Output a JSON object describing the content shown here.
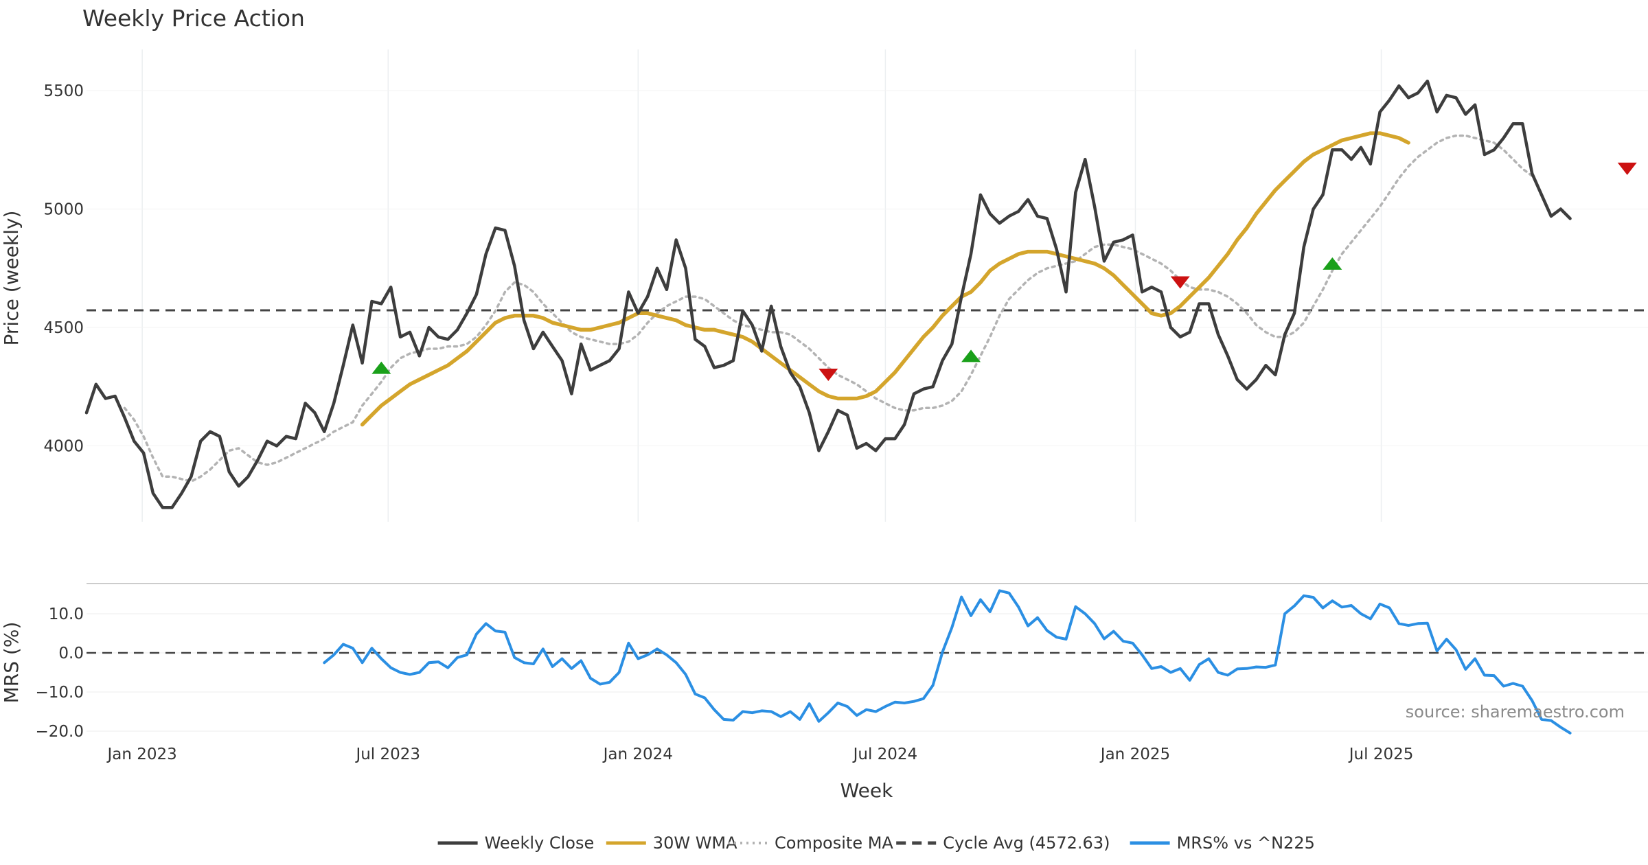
{
  "chart_data": [
    {
      "type": "line",
      "panel": "price",
      "title": "Weekly Price Action",
      "ylabel": "Price (weekly)",
      "xlabel": "Week",
      "x_start": "2022-11-21",
      "x_step_days": 7,
      "ylim": [
        3640,
        5650
      ],
      "yticks": [
        4000,
        4500,
        5000,
        5500
      ],
      "xticks": [
        {
          "date": "2023-01-01",
          "label": "Jan 2023"
        },
        {
          "date": "2023-07-01",
          "label": "Jul 2023"
        },
        {
          "date": "2024-01-01",
          "label": "Jan 2024"
        },
        {
          "date": "2024-07-01",
          "label": "Jul 2024"
        },
        {
          "date": "2025-01-01",
          "label": "Jan 2025"
        },
        {
          "date": "2025-07-01",
          "label": "Jul 2025"
        }
      ],
      "series": [
        {
          "name": "Weekly Close",
          "start_index": 0,
          "color": "#3d3d3d",
          "values": [
            4140,
            4260,
            4200,
            4210,
            4120,
            4020,
            3970,
            3800,
            3740,
            3740,
            3800,
            3870,
            4020,
            4060,
            4040,
            3890,
            3830,
            3870,
            3940,
            4020,
            4000,
            4040,
            4030,
            4180,
            4140,
            4060,
            4180,
            4340,
            4510,
            4350,
            4610,
            4600,
            4670,
            4460,
            4480,
            4380,
            4500,
            4460,
            4450,
            4490,
            4560,
            4640,
            4810,
            4920,
            4910,
            4760,
            4530,
            4410,
            4480,
            4420,
            4360,
            4220,
            4430,
            4320,
            4340,
            4360,
            4410,
            4650,
            4560,
            4630,
            4750,
            4660,
            4870,
            4750,
            4450,
            4420,
            4330,
            4340,
            4360,
            4570,
            4510,
            4400,
            4590,
            4420,
            4310,
            4250,
            4140,
            3980,
            4060,
            4150,
            4130,
            3990,
            4010,
            3980,
            4030,
            4030,
            4090,
            4220,
            4240,
            4250,
            4360,
            4430,
            4630,
            4810,
            5060,
            4980,
            4940,
            4970,
            4990,
            5040,
            4970,
            4960,
            4830,
            4650,
            5070,
            5210,
            5010,
            4780,
            4860,
            4870,
            4890,
            4650,
            4670,
            4650,
            4500,
            4460,
            4480,
            4600,
            4600,
            4470,
            4380,
            4280,
            4240,
            4280,
            4340,
            4300,
            4470,
            4560,
            4840,
            5000,
            5060,
            5250,
            5250,
            5210,
            5260,
            5190,
            5410,
            5460,
            5520,
            5470,
            5490,
            5540,
            5410,
            5480,
            5470,
            5400,
            5440,
            5230,
            5250,
            5300,
            5360,
            5360,
            5150,
            5060,
            4970,
            5000,
            4960
          ]
        },
        {
          "name": "30W WMA",
          "start_index": 29,
          "color": "#d4a52c",
          "values": [
            4090,
            4130,
            4170,
            4200,
            4230,
            4260,
            4280,
            4300,
            4320,
            4340,
            4370,
            4400,
            4440,
            4480,
            4520,
            4540,
            4550,
            4550,
            4550,
            4540,
            4520,
            4510,
            4500,
            4490,
            4490,
            4500,
            4510,
            4520,
            4540,
            4560,
            4560,
            4550,
            4540,
            4530,
            4510,
            4500,
            4490,
            4490,
            4480,
            4470,
            4460,
            4440,
            4410,
            4380,
            4350,
            4320,
            4290,
            4260,
            4230,
            4210,
            4200,
            4200,
            4200,
            4210,
            4230,
            4270,
            4310,
            4360,
            4410,
            4460,
            4500,
            4550,
            4590,
            4630,
            4650,
            4690,
            4740,
            4770,
            4790,
            4810,
            4820,
            4820,
            4820,
            4810,
            4800,
            4790,
            4780,
            4770,
            4750,
            4720,
            4680,
            4640,
            4600,
            4560,
            4550,
            4560,
            4590,
            4630,
            4670,
            4710,
            4760,
            4810,
            4870,
            4920,
            4980,
            5030,
            5080,
            5120,
            5160,
            5200,
            5230,
            5250,
            5270,
            5290,
            5300,
            5310,
            5320,
            5320,
            5310,
            5300,
            5280
          ]
        },
        {
          "name": "Composite MA",
          "start_index": 4,
          "color": "#b3b3b3",
          "values": [
            4160,
            4110,
            4040,
            3950,
            3870,
            3870,
            3860,
            3850,
            3870,
            3900,
            3940,
            3980,
            3990,
            3960,
            3930,
            3920,
            3930,
            3950,
            3970,
            3990,
            4010,
            4030,
            4060,
            4080,
            4100,
            4170,
            4220,
            4270,
            4330,
            4370,
            4390,
            4400,
            4410,
            4410,
            4420,
            4420,
            4430,
            4460,
            4510,
            4570,
            4650,
            4690,
            4680,
            4650,
            4600,
            4560,
            4520,
            4480,
            4460,
            4450,
            4440,
            4430,
            4430,
            4440,
            4470,
            4520,
            4560,
            4590,
            4610,
            4630,
            4630,
            4620,
            4590,
            4560,
            4530,
            4510,
            4500,
            4490,
            4480,
            4480,
            4470,
            4440,
            4410,
            4370,
            4330,
            4300,
            4280,
            4260,
            4230,
            4200,
            4180,
            4160,
            4150,
            4150,
            4160,
            4160,
            4170,
            4190,
            4230,
            4300,
            4380,
            4460,
            4550,
            4620,
            4660,
            4700,
            4730,
            4750,
            4760,
            4770,
            4780,
            4810,
            4840,
            4850,
            4850,
            4840,
            4830,
            4810,
            4790,
            4770,
            4740,
            4700,
            4670,
            4660,
            4660,
            4650,
            4630,
            4600,
            4560,
            4510,
            4480,
            4460,
            4460,
            4480,
            4520,
            4590,
            4660,
            4740,
            4810,
            4860,
            4910,
            4960,
            5010,
            5070,
            5130,
            5180,
            5220,
            5250,
            5280,
            5300,
            5310,
            5310,
            5300,
            5290,
            5280,
            5250,
            5210,
            5170,
            5140
          ]
        }
      ],
      "reference_lines": [
        {
          "name": "Cycle Avg (4572.63)",
          "value": 4572.63,
          "color": "#444444",
          "dash": "dashed"
        }
      ],
      "markers": [
        {
          "kind": "buy",
          "index": 31,
          "value": 4330,
          "color": "#1aa01a"
        },
        {
          "kind": "sell",
          "index": 78,
          "value": 4300,
          "color": "#cc1111"
        },
        {
          "kind": "buy",
          "index": 93,
          "value": 4380,
          "color": "#1aa01a"
        },
        {
          "kind": "sell",
          "index": 115,
          "value": 4690,
          "color": "#cc1111"
        },
        {
          "kind": "buy",
          "index": 131,
          "value": 4770,
          "color": "#1aa01a"
        },
        {
          "kind": "sell",
          "index": 162,
          "value": 5170,
          "color": "#cc1111"
        }
      ]
    },
    {
      "type": "line",
      "panel": "mrs",
      "ylabel": "MRS (%)",
      "ylim": [
        -22,
        18
      ],
      "yticks": [
        -20.0,
        -10.0,
        0.0,
        10.0
      ],
      "series": [
        {
          "name": "MRS% vs ^N225",
          "start_index": 25,
          "color": "#2b8fe3",
          "values": [
            -2.5,
            -0.5,
            2.2,
            1.2,
            -2.5,
            1.2,
            -1.5,
            -3.8,
            -5.0,
            -5.5,
            -5.0,
            -2.5,
            -2.3,
            -3.8,
            -1.2,
            -0.5,
            4.8,
            7.5,
            5.6,
            5.3,
            -1.2,
            -2.5,
            -2.8,
            1.0,
            -3.5,
            -1.5,
            -4.0,
            -2.0,
            -6.5,
            -8.0,
            -7.5,
            -5.0,
            2.5,
            -1.5,
            -0.5,
            1.0,
            -0.5,
            -2.5,
            -5.5,
            -10.5,
            -11.5,
            -14.5,
            -17.0,
            -17.2,
            -15.0,
            -15.3,
            -14.8,
            -15.0,
            -16.3,
            -15.0,
            -17.0,
            -13.0,
            -17.5,
            -15.3,
            -12.8,
            -13.7,
            -16.0,
            -14.5,
            -15.0,
            -13.7,
            -12.6,
            -12.8,
            -12.4,
            -11.7,
            -8.3,
            0.2,
            6.5,
            14.3,
            9.5,
            13.6,
            10.5,
            15.9,
            15.3,
            11.7,
            6.9,
            9.0,
            5.7,
            4.0,
            3.5,
            11.8,
            10.0,
            7.5,
            3.6,
            5.5,
            3.0,
            2.5,
            -0.5,
            -4.0,
            -3.5,
            -5.0,
            -4.0,
            -7.0,
            -3.0,
            -1.5,
            -5.0,
            -5.7,
            -4.1,
            -4.0,
            -3.6,
            -3.7,
            -3.1,
            10.0,
            12.0,
            14.6,
            14.2,
            11.5,
            13.3,
            11.7,
            12.1,
            10.0,
            8.7,
            12.5,
            11.5,
            7.5,
            7.0,
            7.5,
            7.6,
            0.5,
            3.5,
            0.8,
            -4.2,
            -1.5,
            -5.7,
            -5.8,
            -8.5,
            -7.8,
            -8.5,
            -12.2,
            -17.0,
            -17.3,
            -19.0,
            -20.5
          ]
        }
      ],
      "reference_lines": [
        {
          "name": "zero",
          "value": 0,
          "color": "#444444",
          "dash": "dashed"
        }
      ],
      "source_note": "source: sharemaestro.com"
    }
  ],
  "legend": {
    "placement": "bottom-center",
    "items": [
      {
        "label": "Weekly Close",
        "color": "#3d3d3d",
        "style": "solid"
      },
      {
        "label": "30W WMA",
        "color": "#d4a52c",
        "style": "solid"
      },
      {
        "label": "Composite MA",
        "color": "#b3b3b3",
        "style": "dotted"
      },
      {
        "label": "Cycle Avg (4572.63)",
        "color": "#444444",
        "style": "dashed"
      },
      {
        "label": "MRS% vs ^N225",
        "color": "#2b8fe3",
        "style": "solid"
      }
    ]
  }
}
